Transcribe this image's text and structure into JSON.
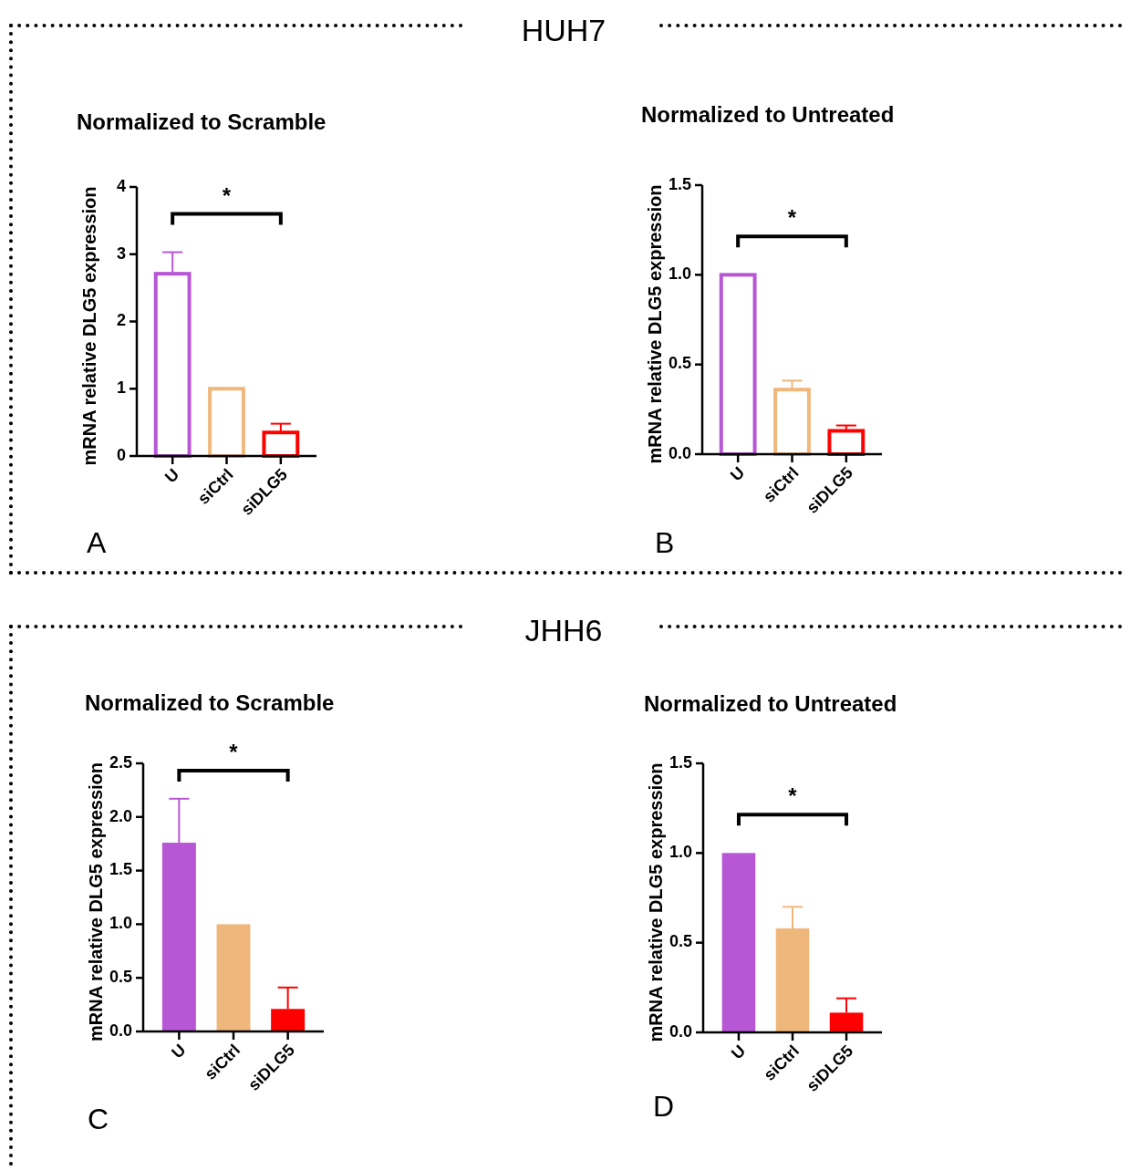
{
  "chart_data": [
    {
      "type": "bar",
      "title": "Normalized to Scramble",
      "ylabel": "mRNA relative DLG5 expression",
      "categories": [
        "U",
        "siCtrl",
        "siDLG5"
      ],
      "values": [
        2.71,
        1.0,
        0.35
      ],
      "errors": [
        0.32,
        null,
        0.13
      ],
      "colors": [
        "#b857d6",
        "#f0b77c",
        "#ff0000"
      ],
      "ylim": [
        0,
        4
      ],
      "yticks": [
        0,
        1,
        2,
        3,
        4
      ],
      "annotations": [
        "*",
        "A",
        "HUH7"
      ]
    },
    {
      "type": "bar",
      "title": "Normalized to Untreated",
      "ylabel": "mRNA relative DLG5 expression",
      "categories": [
        "U",
        "siCtrl",
        "siDLG5"
      ],
      "values": [
        1.0,
        0.36,
        0.13
      ],
      "errors": [
        null,
        0.05,
        0.03
      ],
      "colors": [
        "#b857d6",
        "#f0b77c",
        "#ff0000"
      ],
      "ylim": [
        0,
        1.5
      ],
      "yticks": [
        {
          "value": 0,
          "label": "0.0"
        },
        {
          "value": 0.5,
          "label": "0.5"
        },
        {
          "value": 1,
          "label": "1.0"
        },
        {
          "value": 1.5,
          "label": "1.5"
        }
      ],
      "annotations": [
        "*",
        "B"
      ]
    },
    {
      "type": "bar",
      "title": "Normalized to Scramble",
      "ylabel": "mRNA relative DLG5 expression",
      "categories": [
        "U",
        "siCtrl",
        "siDLG5"
      ],
      "values": [
        1.76,
        1.0,
        0.21
      ],
      "errors": [
        0.41,
        null,
        0.2
      ],
      "colors": [
        "#b857d6",
        "#f0b77c",
        "#ff0000"
      ],
      "ylim": [
        0,
        2.5
      ],
      "yticks": [
        {
          "value": 0,
          "label": "0.0"
        },
        {
          "value": 0.5,
          "label": "0.5"
        },
        {
          "value": 1,
          "label": "1.0"
        },
        {
          "value": 1.5,
          "label": "1.5"
        },
        {
          "value": 2,
          "label": "2.0"
        },
        {
          "value": 2.5,
          "label": "2.5"
        }
      ],
      "annotations": [
        "*",
        "C",
        "JHH6"
      ]
    },
    {
      "type": "bar",
      "title": "Normalized to Untreated",
      "ylabel": "mRNA relative DLG5 expression",
      "categories": [
        "U",
        "siCtrl",
        "siDLG5"
      ],
      "values": [
        1.0,
        0.58,
        0.11
      ],
      "errors": [
        null,
        0.12,
        0.08
      ],
      "colors": [
        "#b857d6",
        "#f0b77c",
        "#ff0000"
      ],
      "ylim": [
        0,
        1.5
      ],
      "yticks": [
        {
          "value": 0,
          "label": "0.0"
        },
        {
          "value": 0.5,
          "label": "0.5"
        },
        {
          "value": 1,
          "label": "1.0"
        },
        {
          "value": 1.5,
          "label": "1.5"
        }
      ],
      "annotations": [
        "*",
        "D"
      ]
    }
  ]
}
